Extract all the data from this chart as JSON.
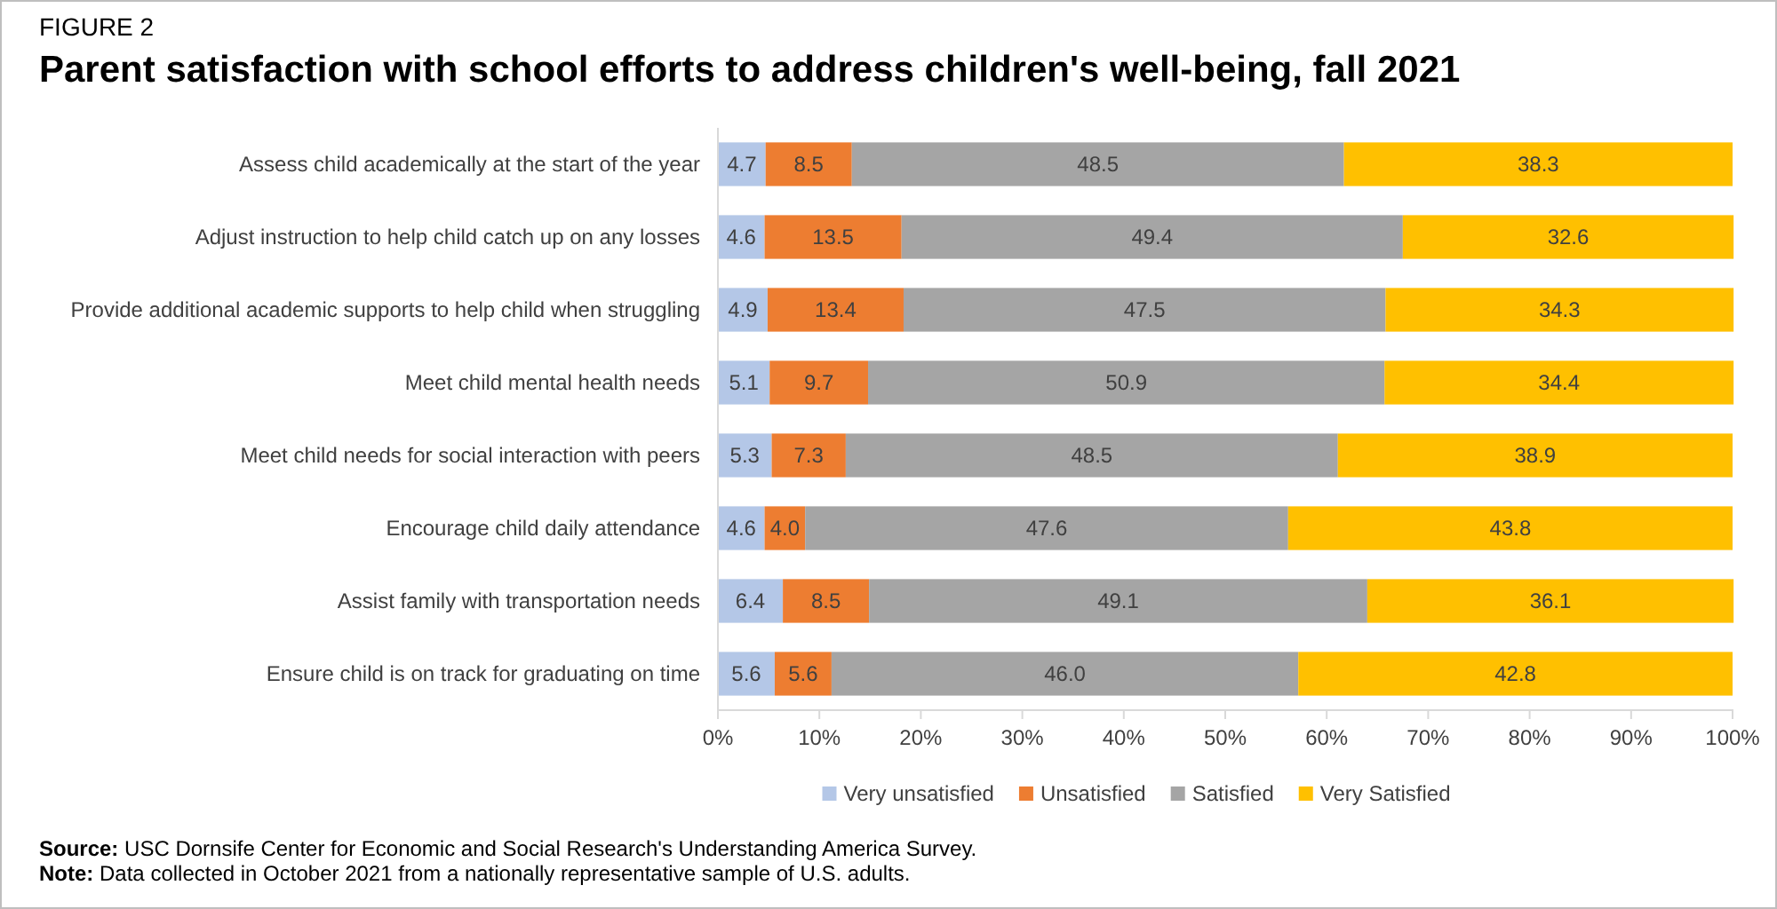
{
  "chart_data": {
    "type": "bar",
    "orientation": "horizontal",
    "stacked": true,
    "subtitle": "FIGURE 2",
    "title": "Parent satisfaction with school efforts to address children's well-being, fall 2021",
    "categories": [
      "Assess child academically at the start of the year",
      "Adjust instruction to help child catch up on any losses",
      "Provide additional academic supports to help child when struggling",
      "Meet child mental health needs",
      "Meet child needs for social interaction with peers",
      "Encourage child daily attendance",
      "Assist family with transportation needs",
      "Ensure child is on track for graduating on time"
    ],
    "series": [
      {
        "name": "Very unsatisfied",
        "color": "#b4c7e7",
        "values": [
          4.7,
          4.6,
          4.9,
          5.1,
          5.3,
          4.6,
          6.4,
          5.6
        ],
        "value_labels": [
          "4.7",
          "4.6",
          "4.9",
          "5.1",
          "5.3",
          "4.6",
          "6.4",
          "5.6"
        ]
      },
      {
        "name": "Unsatisfied",
        "color": "#ed7d31",
        "values": [
          8.5,
          13.5,
          13.4,
          9.7,
          7.3,
          4.0,
          8.5,
          5.6
        ],
        "value_labels": [
          "8.5",
          "13.5",
          "13.4",
          "9.7",
          "7.3",
          "4.0",
          "8.5",
          "5.6"
        ]
      },
      {
        "name": "Satisfied",
        "color": "#a5a5a5",
        "values": [
          48.5,
          49.4,
          47.5,
          50.9,
          48.5,
          47.6,
          49.1,
          46.0
        ],
        "value_labels": [
          "48.5",
          "49.4",
          "47.5",
          "50.9",
          "48.5",
          "47.6",
          "49.1",
          "46.0"
        ]
      },
      {
        "name": "Very Satisfied",
        "color": "#ffc000",
        "values": [
          38.3,
          32.6,
          34.3,
          34.4,
          38.9,
          43.8,
          36.1,
          42.8
        ],
        "value_labels": [
          "38.3",
          "32.6",
          "34.3",
          "34.4",
          "38.9",
          "43.8",
          "36.1",
          "42.8"
        ]
      }
    ],
    "xlim": [
      0,
      100
    ],
    "xticks": [
      {
        "value": 0,
        "label": "0%"
      },
      {
        "value": 10,
        "label": "10%"
      },
      {
        "value": 20,
        "label": "20%"
      },
      {
        "value": 30,
        "label": "30%"
      },
      {
        "value": 40,
        "label": "40%"
      },
      {
        "value": 50,
        "label": "50%"
      },
      {
        "value": 60,
        "label": "60%"
      },
      {
        "value": 70,
        "label": "70%"
      },
      {
        "value": 80,
        "label": "80%"
      },
      {
        "value": 90,
        "label": "90%"
      },
      {
        "value": 100,
        "label": "100%"
      }
    ],
    "legend": "bottom",
    "annotations": [
      "Source: USC Dornsife Center for Economic and Social Research's Understanding America Survey.",
      "Note: Data collected in October 2021 from a nationally representative sample of U.S. adults."
    ]
  }
}
